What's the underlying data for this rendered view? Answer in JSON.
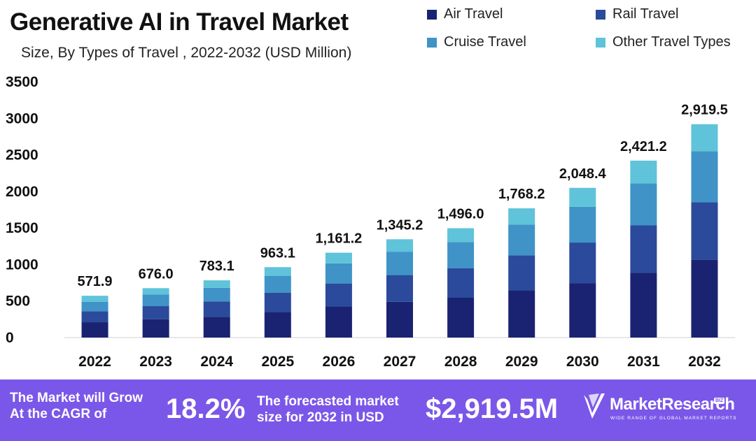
{
  "header": {
    "title": "Generative AI in Travel Market",
    "subtitle": "Size, By Types of Travel , 2022-2032 (USD Million)"
  },
  "legend": [
    {
      "label": "Air Travel",
      "color": "#1a2372"
    },
    {
      "label": "Rail Travel",
      "color": "#2b4a9b"
    },
    {
      "label": "Cruise Travel",
      "color": "#3f93c7"
    },
    {
      "label": "Other Travel Types",
      "color": "#5fc3da"
    }
  ],
  "chart_data": {
    "type": "bar",
    "stacked": true,
    "title": "Generative AI in Travel Market",
    "subtitle": "Size, By Types of Travel , 2022-2032 (USD Million)",
    "categories": [
      "2022",
      "2023",
      "2024",
      "2025",
      "2026",
      "2027",
      "2028",
      "2029",
      "2030",
      "2031",
      "2032"
    ],
    "series": [
      {
        "name": "Air Travel",
        "values": [
          210,
          250,
          285,
          350,
          425,
          490,
          545,
          645,
          745,
          885,
          1065
        ]
      },
      {
        "name": "Rail Travel",
        "values": [
          150,
          180,
          210,
          265,
          315,
          365,
          405,
          480,
          555,
          650,
          785
        ]
      },
      {
        "name": "Cruise Travel",
        "values": [
          130,
          160,
          185,
          230,
          275,
          320,
          355,
          420,
          490,
          575,
          700
        ]
      },
      {
        "name": "Other Travel Types",
        "values": [
          81.9,
          86,
          103.1,
          118.1,
          146.2,
          170.2,
          191,
          223.2,
          258.4,
          311.2,
          369.5
        ]
      }
    ],
    "totals": [
      571.9,
      676.0,
      783.1,
      963.1,
      1161.2,
      1345.2,
      1496.0,
      1768.2,
      2048.4,
      2421.2,
      2919.5
    ],
    "total_labels": [
      "571.9",
      "676.0",
      "783.1",
      "963.1",
      "1,161.2",
      "1,345.2",
      "1,496.0",
      "1,768.2",
      "2,048.4",
      "2,421.2",
      "2,919.5"
    ],
    "yticks": [
      0,
      500,
      1000,
      1500,
      2000,
      2500,
      3000,
      3500
    ],
    "ylim": [
      0,
      3500
    ],
    "xlabel": "",
    "ylabel": "",
    "grid": false,
    "legend_position": "top-right"
  },
  "banner": {
    "cagr_text_line1": "The Market will Grow",
    "cagr_text_line2": "At the CAGR of",
    "cagr_value": "18.2%",
    "forecast_text_line1": "The forecasted market",
    "forecast_text_line2": "size for 2032 in USD",
    "forecast_value": "$2,919.5M",
    "logo_name": "MarketResearch",
    "logo_badge": "BIZ",
    "logo_tagline": "WIDE RANGE OF GLOBAL MARKET REPORTS"
  }
}
